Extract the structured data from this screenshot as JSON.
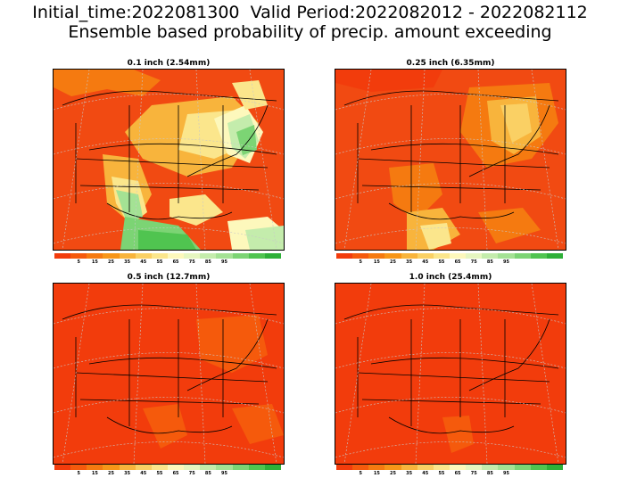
{
  "header": {
    "line1": "Initial_time:2022081300  Valid Period:2022082012 - 2022082112",
    "line2": "Ensemble based probability of precip. amount exceeding"
  },
  "panels": [
    {
      "title": "0.1 inch (2.54mm)"
    },
    {
      "title": "0.25 inch (6.35mm)"
    },
    {
      "title": "0.5 inch (12.7mm)"
    },
    {
      "title": "1.0 inch (25.4mm)"
    }
  ],
  "colorbar": {
    "colors": [
      "#f23c0c",
      "#f55a0c",
      "#f57a10",
      "#f79618",
      "#f8b43c",
      "#fad064",
      "#fbe68c",
      "#fdf8bc",
      "#e6f6c0",
      "#c4ecac",
      "#a4e294",
      "#7cd474",
      "#50c450",
      "#2eb038"
    ],
    "labels": [
      "5",
      "15",
      "25",
      "35",
      "45",
      "55",
      "65",
      "75",
      "85",
      "95"
    ]
  }
}
